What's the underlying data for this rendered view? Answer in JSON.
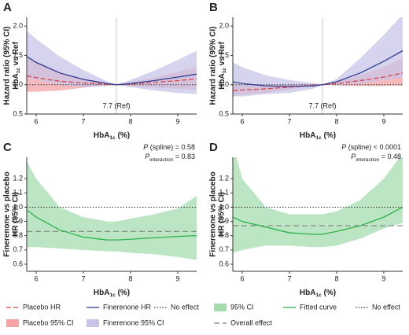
{
  "chart_data": [
    {
      "type": "line",
      "panel_label": "A",
      "ylabel": [
        "Hazard ratio (95% CI)",
        [
          {
            "t": "HbA",
            "s": "n"
          },
          {
            "t": "1c",
            "s": "sub"
          },
          {
            "t": " vs Ref",
            "s": "n"
          }
        ]
      ],
      "xlabel": [
        {
          "t": "HbA",
          "s": "n"
        },
        {
          "t": "1c",
          "s": "sub"
        },
        {
          "t": " (%)",
          "s": "n"
        }
      ],
      "xlim": [
        5.8,
        9.4
      ],
      "ylim": [
        0.5,
        2.15
      ],
      "xticks": [
        6,
        7,
        8,
        9
      ],
      "yticks": [
        0.5,
        {
          "value": 1.0,
          "label": "1.0"
        },
        1.5,
        {
          "value": 2.0,
          "label": "2.0"
        }
      ],
      "refline": {
        "value": 7.7,
        "label": "7.7 (Ref)"
      },
      "x": [
        5.8,
        6,
        6.5,
        7,
        7.5,
        7.7,
        8,
        8.5,
        9,
        9.4
      ],
      "series": [
        {
          "name": "Placebo 95% CI",
          "kind": "band",
          "color": "#f4a3a6",
          "lower": [
            0.88,
            0.88,
            0.9,
            0.95,
            0.99,
            1.0,
            0.98,
            0.95,
            0.93,
            0.92
          ],
          "upper": [
            1.45,
            1.38,
            1.22,
            1.1,
            1.03,
            1.0,
            1.04,
            1.12,
            1.22,
            1.3
          ]
        },
        {
          "name": "Finerenone 95% CI",
          "kind": "band",
          "color": "#c8c4e8",
          "lower": [
            1.12,
            1.08,
            1.0,
            0.96,
            0.98,
            1.0,
            0.96,
            0.9,
            0.86,
            0.84
          ],
          "upper": [
            1.92,
            1.78,
            1.48,
            1.25,
            1.06,
            1.0,
            1.08,
            1.24,
            1.42,
            1.58
          ]
        },
        {
          "name": "Placebo HR",
          "kind": "line",
          "color": "#d9444a",
          "dash": "6,3",
          "values": [
            1.15,
            1.12,
            1.06,
            1.03,
            1.01,
            1.0,
            1.01,
            1.04,
            1.07,
            1.1
          ]
        },
        {
          "name": "Finerenone HR",
          "kind": "line",
          "color": "#2e3a8c",
          "dash": "none",
          "values": [
            1.48,
            1.38,
            1.2,
            1.09,
            1.02,
            1.0,
            1.02,
            1.07,
            1.13,
            1.18
          ]
        }
      ],
      "hlines": [
        {
          "name": "No effect",
          "value": 1.0,
          "color": "#333",
          "dash": "1.5,2"
        }
      ]
    },
    {
      "type": "line",
      "panel_label": "B",
      "ylabel": [
        "Hazard ratio (95% CI)",
        [
          {
            "t": "HbA",
            "s": "n"
          },
          {
            "t": "1c",
            "s": "sub"
          },
          {
            "t": " vs Ref",
            "s": "n"
          }
        ]
      ],
      "xlabel": [
        {
          "t": "HbA",
          "s": "n"
        },
        {
          "t": "1c",
          "s": "sub"
        },
        {
          "t": " (%)",
          "s": "n"
        }
      ],
      "xlim": [
        5.8,
        9.4
      ],
      "ylim": [
        0.5,
        2.15
      ],
      "xticks": [
        6,
        7,
        8,
        9
      ],
      "yticks": [
        0.5,
        {
          "value": 1.0,
          "label": "1.0"
        },
        1.5,
        {
          "value": 2.0,
          "label": "2.0"
        }
      ],
      "refline": {
        "value": 7.7,
        "label": "7.7 (Ref)"
      },
      "x": [
        5.8,
        6,
        6.5,
        7,
        7.5,
        7.7,
        8,
        8.5,
        9,
        9.4
      ],
      "series": [
        {
          "kind": "band",
          "color": "#f4a3a6",
          "lower": [
            0.82,
            0.83,
            0.86,
            0.92,
            0.98,
            1.0,
            0.99,
            0.98,
            0.98,
            0.99
          ],
          "upper": [
            1.0,
            0.99,
            1.0,
            1.01,
            1.01,
            1.0,
            1.05,
            1.16,
            1.3,
            1.45
          ]
        },
        {
          "kind": "band",
          "color": "#c8c4e8",
          "lower": [
            0.8,
            0.8,
            0.84,
            0.86,
            0.93,
            1.0,
            1.0,
            1.02,
            1.08,
            1.12
          ],
          "upper": [
            1.38,
            1.3,
            1.16,
            1.08,
            1.03,
            1.0,
            1.1,
            1.45,
            1.85,
            2.2
          ]
        },
        {
          "kind": "line",
          "color": "#d9444a",
          "dash": "6,3",
          "values": [
            0.9,
            0.91,
            0.93,
            0.96,
            0.99,
            1.0,
            1.02,
            1.07,
            1.13,
            1.2
          ]
        },
        {
          "kind": "line",
          "color": "#2e3a8c",
          "dash": "none",
          "values": [
            1.05,
            1.02,
            0.98,
            0.97,
            0.98,
            1.0,
            1.05,
            1.2,
            1.4,
            1.58
          ]
        }
      ],
      "hlines": [
        {
          "value": 1.0,
          "color": "#333",
          "dash": "1.5,2"
        }
      ]
    },
    {
      "type": "line",
      "panel_label": "C",
      "ylabel": [
        "Finerenone vs placebo",
        "HR (95% CI)"
      ],
      "xlabel": [
        {
          "t": "HbA",
          "s": "n"
        },
        {
          "t": "1c",
          "s": "sub"
        },
        {
          "t": " (%)",
          "s": "n"
        }
      ],
      "annotations": [
        [
          {
            "t": "P",
            "s": "i"
          },
          {
            "t": " (spline) = 0.58",
            "s": "n"
          }
        ],
        [
          {
            "t": "P",
            "s": "i"
          },
          {
            "t": "interaction",
            "s": "sub"
          },
          {
            "t": " = 0.83",
            "s": "n"
          }
        ]
      ],
      "xlim": [
        5.8,
        9.4
      ],
      "ylim": [
        0.55,
        1.35
      ],
      "xticks": [
        6,
        7,
        8,
        9
      ],
      "yticks": [
        0.6,
        0.7,
        0.8,
        0.9,
        {
          "value": 1.0,
          "label": "1.0"
        },
        1.1,
        1.2
      ],
      "x": [
        5.8,
        6,
        6.5,
        7,
        7.5,
        7.7,
        8,
        8.5,
        9,
        9.4
      ],
      "series": [
        {
          "name": "95% CI",
          "kind": "band",
          "color": "#a6dcb0",
          "lower": [
            0.72,
            0.72,
            0.71,
            0.7,
            0.69,
            0.69,
            0.68,
            0.67,
            0.65,
            0.63
          ],
          "upper": [
            1.32,
            1.2,
            1.0,
            0.93,
            0.9,
            0.9,
            0.92,
            0.95,
            0.99,
            1.08
          ]
        },
        {
          "name": "Fitted curve",
          "kind": "line",
          "color": "#2db34a",
          "dash": "none",
          "values": [
            0.98,
            0.93,
            0.84,
            0.79,
            0.77,
            0.77,
            0.775,
            0.785,
            0.795,
            0.8
          ]
        }
      ],
      "hlines": [
        {
          "name": "No effect",
          "value": 1.0,
          "color": "#333",
          "dash": "1.5,2"
        },
        {
          "name": "Overall effect",
          "value": 0.83,
          "color": "#777",
          "dash": "7,4"
        }
      ]
    },
    {
      "type": "line",
      "panel_label": "D",
      "ylabel": [
        "Finerenone vs placebo",
        "HR (95% CI)"
      ],
      "xlabel": [
        {
          "t": "HbA",
          "s": "n"
        },
        {
          "t": "1c",
          "s": "sub"
        },
        {
          "t": " (%)",
          "s": "n"
        }
      ],
      "annotations": [
        [
          {
            "t": "P",
            "s": "i"
          },
          {
            "t": " (spline) < 0.0001",
            "s": "n"
          }
        ],
        [
          {
            "t": "P",
            "s": "i"
          },
          {
            "t": "interaction",
            "s": "sub"
          },
          {
            "t": " = 0.48",
            "s": "n"
          }
        ]
      ],
      "xlim": [
        5.8,
        9.4
      ],
      "ylim": [
        0.55,
        1.35
      ],
      "xticks": [
        6,
        7,
        8,
        9
      ],
      "yticks": [
        0.6,
        0.7,
        0.8,
        0.9,
        {
          "value": 1.0,
          "label": "1.0"
        },
        1.1,
        1.2
      ],
      "x": [
        5.8,
        6,
        6.5,
        7,
        7.5,
        7.7,
        8,
        8.5,
        9,
        9.4
      ],
      "series": [
        {
          "kind": "band",
          "color": "#a6dcb0",
          "lower": [
            0.68,
            0.7,
            0.73,
            0.73,
            0.72,
            0.72,
            0.73,
            0.78,
            0.85,
            0.89
          ],
          "upper": [
            1.45,
            1.2,
            1.0,
            0.95,
            0.95,
            0.95,
            0.97,
            1.05,
            1.2,
            1.38
          ]
        },
        {
          "kind": "line",
          "color": "#2db34a",
          "dash": "none",
          "values": [
            0.93,
            0.9,
            0.86,
            0.82,
            0.81,
            0.81,
            0.83,
            0.87,
            0.93,
            1.0
          ]
        }
      ],
      "hlines": [
        {
          "value": 1.0,
          "color": "#333",
          "dash": "1.5,2"
        },
        {
          "value": 0.87,
          "color": "#777",
          "dash": "7,4"
        }
      ]
    }
  ]
}
